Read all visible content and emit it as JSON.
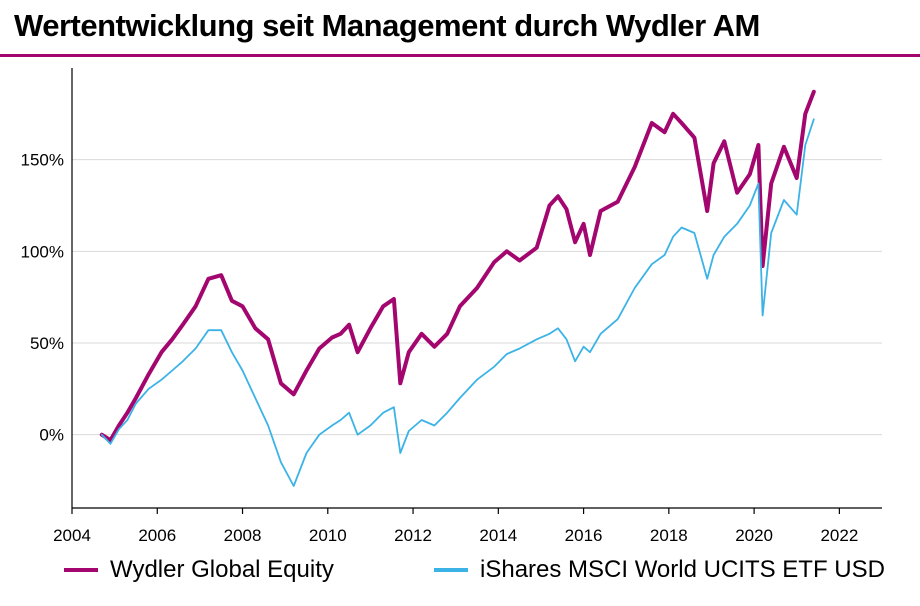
{
  "title": "Wertentwicklung seit Management durch Wydler AM",
  "colors": {
    "accent": "#a3076f",
    "wydler": "#a3076f",
    "ishares": "#3bb3e6",
    "grid": "#d9d9d9",
    "axis": "#000000"
  },
  "chart_data": {
    "type": "line",
    "title": "Wertentwicklung seit Management durch Wydler AM",
    "xlabel": "",
    "ylabel": "",
    "xlim": [
      2004,
      2023
    ],
    "ylim": [
      -40,
      200
    ],
    "x_ticks": [
      2004,
      2006,
      2008,
      2010,
      2012,
      2014,
      2016,
      2018,
      2020,
      2022
    ],
    "x_tick_labels": [
      "2004",
      "2006",
      "2008",
      "2010",
      "2012",
      "2014",
      "2016",
      "2018",
      "2020",
      "2022"
    ],
    "y_ticks": [
      0,
      50,
      100,
      150
    ],
    "y_tick_labels": [
      "0%",
      "50%",
      "100%",
      "150%"
    ],
    "grid": "horizontal",
    "legend": "bottom",
    "series": [
      {
        "name": "Wydler Global Equity",
        "color": "#a3076f",
        "x": [
          2004.7,
          2004.9,
          2005.1,
          2005.3,
          2005.5,
          2005.8,
          2006.1,
          2006.35,
          2006.6,
          2006.9,
          2007.2,
          2007.5,
          2007.75,
          2008.0,
          2008.3,
          2008.6,
          2008.9,
          2009.2,
          2009.5,
          2009.8,
          2010.1,
          2010.3,
          2010.5,
          2010.7,
          2011.0,
          2011.3,
          2011.55,
          2011.7,
          2011.9,
          2012.2,
          2012.5,
          2012.8,
          2013.1,
          2013.5,
          2013.9,
          2014.2,
          2014.5,
          2014.9,
          2015.2,
          2015.4,
          2015.6,
          2015.8,
          2016.0,
          2016.15,
          2016.4,
          2016.8,
          2017.2,
          2017.6,
          2017.9,
          2018.1,
          2018.3,
          2018.6,
          2018.9,
          2019.05,
          2019.3,
          2019.6,
          2019.9,
          2020.1,
          2020.2,
          2020.4,
          2020.7,
          2021.0,
          2021.2,
          2021.4
        ],
        "y": [
          0,
          -3,
          5,
          12,
          20,
          33,
          45,
          52,
          60,
          70,
          85,
          87,
          73,
          70,
          58,
          52,
          28,
          22,
          35,
          47,
          53,
          55,
          60,
          45,
          58,
          70,
          74,
          28,
          45,
          55,
          48,
          55,
          70,
          80,
          94,
          100,
          95,
          102,
          125,
          130,
          123,
          105,
          115,
          98,
          122,
          127,
          146,
          170,
          165,
          175,
          170,
          162,
          122,
          148,
          160,
          132,
          142,
          158,
          92,
          137,
          157,
          140,
          175,
          187
        ]
      },
      {
        "name": "iShares MSCI World UCITS ETF USD",
        "color": "#3bb3e6",
        "x": [
          2004.7,
          2004.9,
          2005.1,
          2005.3,
          2005.5,
          2005.8,
          2006.1,
          2006.35,
          2006.6,
          2006.9,
          2007.2,
          2007.5,
          2007.75,
          2008.0,
          2008.3,
          2008.6,
          2008.9,
          2009.2,
          2009.5,
          2009.8,
          2010.1,
          2010.3,
          2010.5,
          2010.7,
          2011.0,
          2011.3,
          2011.55,
          2011.7,
          2011.9,
          2012.2,
          2012.5,
          2012.8,
          2013.1,
          2013.5,
          2013.9,
          2014.2,
          2014.5,
          2014.9,
          2015.2,
          2015.4,
          2015.6,
          2015.8,
          2016.0,
          2016.15,
          2016.4,
          2016.8,
          2017.2,
          2017.6,
          2017.9,
          2018.1,
          2018.3,
          2018.6,
          2018.9,
          2019.05,
          2019.3,
          2019.6,
          2019.9,
          2020.1,
          2020.2,
          2020.4,
          2020.7,
          2021.0,
          2021.2,
          2021.4
        ],
        "y": [
          0,
          -5,
          3,
          8,
          17,
          25,
          30,
          35,
          40,
          47,
          57,
          57,
          45,
          35,
          20,
          5,
          -15,
          -28,
          -10,
          0,
          5,
          8,
          12,
          0,
          5,
          12,
          15,
          -10,
          2,
          8,
          5,
          12,
          20,
          30,
          37,
          44,
          47,
          52,
          55,
          58,
          52,
          40,
          48,
          45,
          55,
          63,
          80,
          93,
          98,
          108,
          113,
          110,
          85,
          98,
          108,
          115,
          125,
          137,
          65,
          110,
          128,
          120,
          158,
          172
        ]
      }
    ]
  }
}
